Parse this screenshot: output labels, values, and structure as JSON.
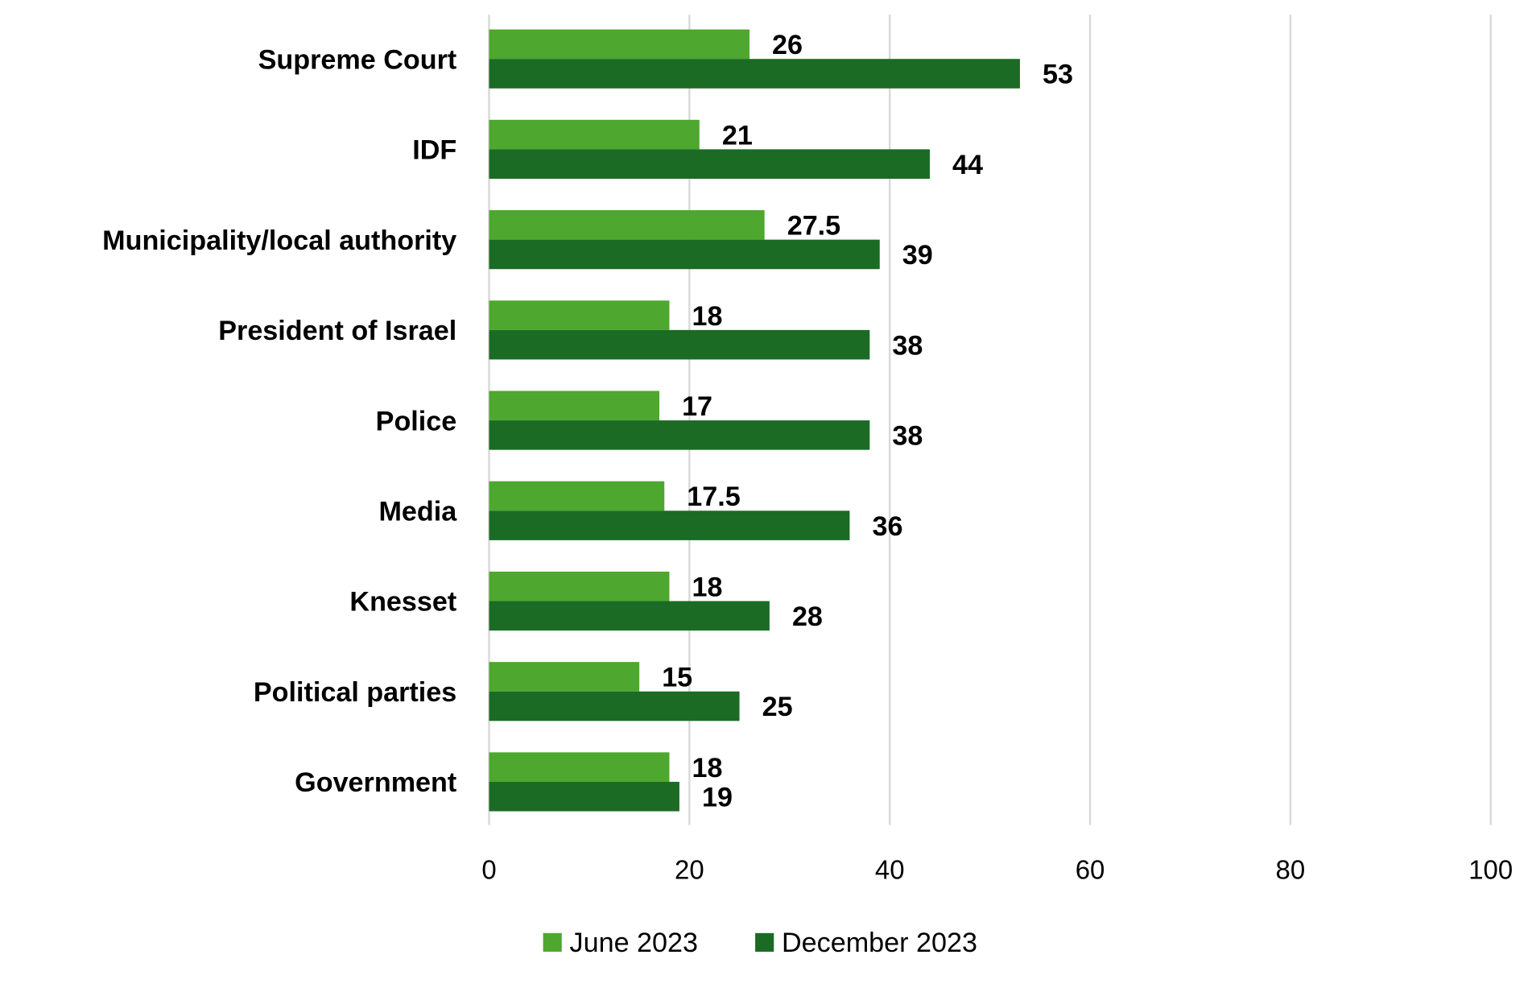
{
  "chart_data": {
    "type": "bar",
    "orientation": "horizontal",
    "title": "",
    "xlabel": "",
    "ylabel": "",
    "categories": [
      "Supreme Court",
      "IDF",
      "Municipality/local authority",
      "President of Israel",
      "Police",
      "Media",
      "Knesset",
      "Political parties",
      "Government"
    ],
    "series": [
      {
        "name": "June 2023",
        "color": "#4EA72E",
        "values": [
          26,
          21,
          27.5,
          18,
          17,
          17.5,
          18,
          15,
          18
        ]
      },
      {
        "name": "December 2023",
        "color": "#1B6B25",
        "values": [
          53,
          44,
          39,
          38,
          38,
          36,
          28,
          25,
          19
        ]
      }
    ],
    "xlim": [
      0,
      100
    ],
    "xticks": [
      "0",
      "20",
      "40",
      "60",
      "80",
      "100"
    ],
    "grid": true,
    "gridline_color": "#D9D9D9",
    "legend_position": "bottom"
  }
}
